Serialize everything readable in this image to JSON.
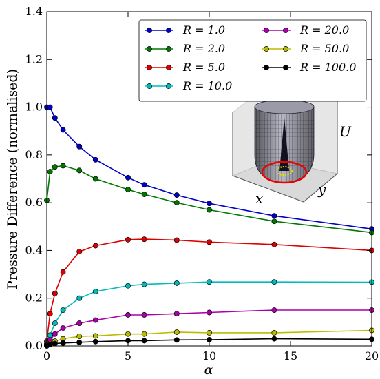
{
  "chart_data": {
    "type": "line",
    "xlabel": "α",
    "ylabel": "Pressure Difference (normalised)",
    "xlim": [
      0,
      20
    ],
    "ylim": [
      0,
      1.4
    ],
    "xticks": [
      0,
      5,
      10,
      15,
      20
    ],
    "yticks": [
      0.0,
      0.2,
      0.4,
      0.6,
      0.8,
      1.0,
      1.2,
      1.4
    ],
    "xtick_labels": [
      "0",
      "5",
      "10",
      "15",
      "20"
    ],
    "ytick_labels": [
      "0.0",
      "0.2",
      "0.4",
      "0.6",
      "0.8",
      "1.0",
      "1.2",
      "1.4"
    ],
    "grid": false,
    "legend_position": "top-right",
    "series": [
      {
        "name": "R = 1.0",
        "color": "#0000cc",
        "x": [
          0,
          0.2,
          0.5,
          1,
          2,
          3,
          5,
          6,
          8,
          10,
          14,
          20
        ],
        "y": [
          1.0,
          1.0,
          0.955,
          0.905,
          0.835,
          0.78,
          0.705,
          0.675,
          0.632,
          0.597,
          0.545,
          0.49
        ]
      },
      {
        "name": "R = 2.0",
        "color": "#007700",
        "x": [
          0,
          0.2,
          0.5,
          1,
          2,
          3,
          5,
          6,
          8,
          10,
          14,
          20
        ],
        "y": [
          0.61,
          0.73,
          0.75,
          0.755,
          0.735,
          0.7,
          0.655,
          0.635,
          0.6,
          0.57,
          0.522,
          0.475
        ]
      },
      {
        "name": "R = 5.0",
        "color": "#dd0000",
        "x": [
          0,
          0.2,
          0.5,
          1,
          2,
          3,
          5,
          6,
          8,
          10,
          14,
          20
        ],
        "y": [
          0.02,
          0.135,
          0.22,
          0.31,
          0.395,
          0.42,
          0.445,
          0.447,
          0.443,
          0.435,
          0.425,
          0.4
        ]
      },
      {
        "name": "R = 10.0",
        "color": "#00bbbb",
        "x": [
          0,
          0.2,
          0.5,
          1,
          2,
          3,
          5,
          6,
          8,
          10,
          14,
          20
        ],
        "y": [
          0.01,
          0.045,
          0.095,
          0.15,
          0.2,
          0.228,
          0.252,
          0.258,
          0.263,
          0.268,
          0.268,
          0.267
        ]
      },
      {
        "name": "R = 20.0",
        "color": "#aa00aa",
        "x": [
          0,
          0.2,
          0.5,
          1,
          2,
          3,
          5,
          6,
          8,
          10,
          14,
          20
        ],
        "y": [
          0.005,
          0.025,
          0.05,
          0.075,
          0.095,
          0.108,
          0.13,
          0.13,
          0.135,
          0.14,
          0.15,
          0.15
        ]
      },
      {
        "name": "R = 50.0",
        "color": "#bbbb00",
        "x": [
          0,
          0.2,
          0.5,
          1,
          2,
          3,
          5,
          6,
          8,
          10,
          14,
          20
        ],
        "y": [
          0.002,
          0.01,
          0.02,
          0.03,
          0.04,
          0.042,
          0.05,
          0.05,
          0.058,
          0.055,
          0.055,
          0.065
        ]
      },
      {
        "name": "R = 100.0",
        "color": "#000000",
        "x": [
          0,
          0.2,
          0.5,
          1,
          2,
          3,
          5,
          6,
          8,
          10,
          14,
          20
        ],
        "y": [
          0.0,
          0.005,
          0.01,
          0.012,
          0.015,
          0.018,
          0.022,
          0.022,
          0.025,
          0.026,
          0.03,
          0.028
        ]
      }
    ],
    "legend_label_colors": [
      "#000000",
      "#000000",
      "#000000",
      "#888888",
      "#000000",
      "#000000",
      "#000000"
    ],
    "inset": {
      "x_label": "x",
      "y_label": "y",
      "z_label": "U"
    }
  }
}
